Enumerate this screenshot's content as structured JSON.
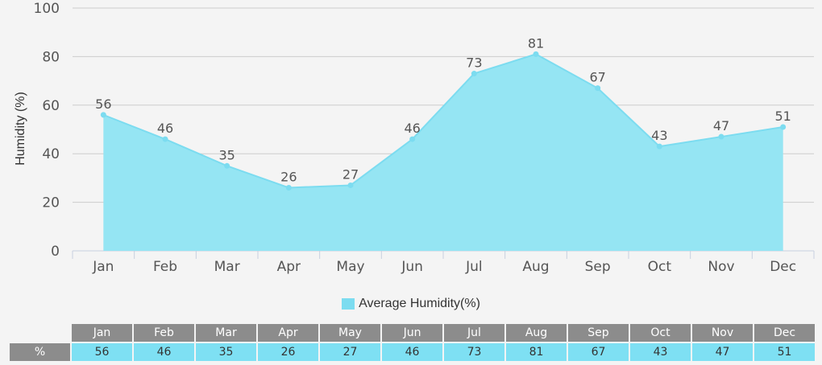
{
  "chart_data": {
    "type": "area",
    "categories": [
      "Jan",
      "Feb",
      "Mar",
      "Apr",
      "May",
      "Jun",
      "Jul",
      "Aug",
      "Sep",
      "Oct",
      "Nov",
      "Dec"
    ],
    "series": [
      {
        "name": "Average Humidity(%)",
        "values": [
          56,
          46,
          35,
          26,
          27,
          46,
          73,
          81,
          67,
          43,
          47,
          51
        ]
      }
    ],
    "title": "",
    "xlabel": "",
    "ylabel": "Humidity (%)",
    "ylim": [
      0,
      100
    ],
    "yticks": [
      0,
      20,
      40,
      60,
      80,
      100
    ],
    "grid": true,
    "legend_position": "bottom-center",
    "colors": {
      "fill": "#95e5f3",
      "line": "#7cdcf0",
      "grid": "#cccccc"
    }
  },
  "table": {
    "row_header": "%",
    "columns": [
      "Jan",
      "Feb",
      "Mar",
      "Apr",
      "May",
      "Jun",
      "Jul",
      "Aug",
      "Sep",
      "Oct",
      "Nov",
      "Dec"
    ],
    "values": [
      "56",
      "46",
      "35",
      "26",
      "27",
      "46",
      "73",
      "81",
      "67",
      "43",
      "47",
      "51"
    ]
  }
}
